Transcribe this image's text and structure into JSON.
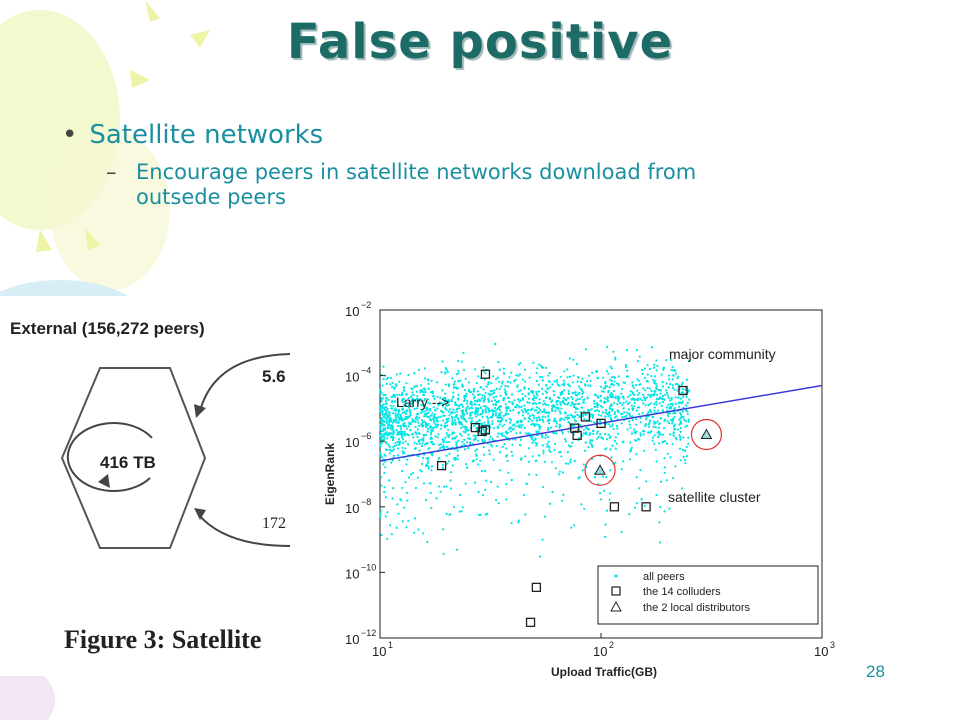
{
  "slide": {
    "title": "False positive",
    "bullet": "Satellite networks",
    "sub_line1": "Encourage peers in satellite networks download from",
    "sub_line2": "outsede peers",
    "dash": "–",
    "dot": "•",
    "page_number": "28"
  },
  "left_figure": {
    "external_label": "External (156,272 peers)",
    "inner_label": "416 TB",
    "top_arrow_value": "5.6",
    "bottom_arrow_value": "172",
    "caption": "Figure 3:  Satellite"
  },
  "colors": {
    "title": "#1d6b66",
    "text": "#1a8fa0",
    "cloud": "#00e5e5",
    "fit_line": "#3b3bdc",
    "highlight": "#e03030"
  },
  "chart_data": {
    "type": "scatter",
    "x_scale": "log",
    "y_scale": "log",
    "xlim": [
      10,
      1000
    ],
    "ylim": [
      1e-12,
      0.01
    ],
    "xlabel": "Upload Traffic(GB)",
    "ylabel": "EigenRank",
    "x_ticks": [
      {
        "value": 10,
        "base": "10",
        "exp": "1"
      },
      {
        "value": 100,
        "base": "10",
        "exp": "2"
      },
      {
        "value": 1000,
        "base": "10",
        "exp": "3"
      }
    ],
    "y_ticks": [
      {
        "value": 1e-12,
        "base": "10",
        "exp": "−12"
      },
      {
        "value": 1e-10,
        "base": "10",
        "exp": "−10"
      },
      {
        "value": 1e-08,
        "base": "10",
        "exp": "−8"
      },
      {
        "value": 1e-06,
        "base": "10",
        "exp": "−6"
      },
      {
        "value": 0.0001,
        "base": "10",
        "exp": "−4"
      },
      {
        "value": 0.01,
        "base": "10",
        "exp": "−2"
      }
    ],
    "annotations": {
      "major": "major community",
      "satellite": "satellite cluster",
      "larry": "Larry -->"
    },
    "fit_line": [
      {
        "x": 10,
        "y": 2.5e-07
      },
      {
        "x": 1000,
        "y": 5e-05
      }
    ],
    "series": [
      {
        "name": "all peers",
        "marker": "dot",
        "cloud": {
          "x_log_range": [
            1.0,
            3.0
          ],
          "core_center_y_log": -5.4,
          "count": 2600
        }
      },
      {
        "name": "the 14 colluders",
        "marker": "square",
        "points": [
          {
            "x": 19,
            "y": 1.8e-07
          },
          {
            "x": 27,
            "y": 2.6e-06
          },
          {
            "x": 29,
            "y": 2e-06
          },
          {
            "x": 30,
            "y": 0.00011
          },
          {
            "x": 48,
            "y": 3e-12
          },
          {
            "x": 51,
            "y": 3.5e-11
          },
          {
            "x": 76,
            "y": 2.5e-06
          },
          {
            "x": 78,
            "y": 1.5e-06
          },
          {
            "x": 85,
            "y": 5.5e-06
          },
          {
            "x": 100,
            "y": 3.5e-06
          },
          {
            "x": 115,
            "y": 1e-08
          },
          {
            "x": 160,
            "y": 1e-08
          },
          {
            "x": 235,
            "y": 3.5e-05
          },
          {
            "x": 30,
            "y": 2.2e-06
          }
        ]
      },
      {
        "name": "the 2 local distributors",
        "marker": "triangle",
        "points": [
          {
            "x": 99,
            "y": 1.3e-07
          },
          {
            "x": 300,
            "y": 1.6e-06
          }
        ]
      }
    ]
  }
}
